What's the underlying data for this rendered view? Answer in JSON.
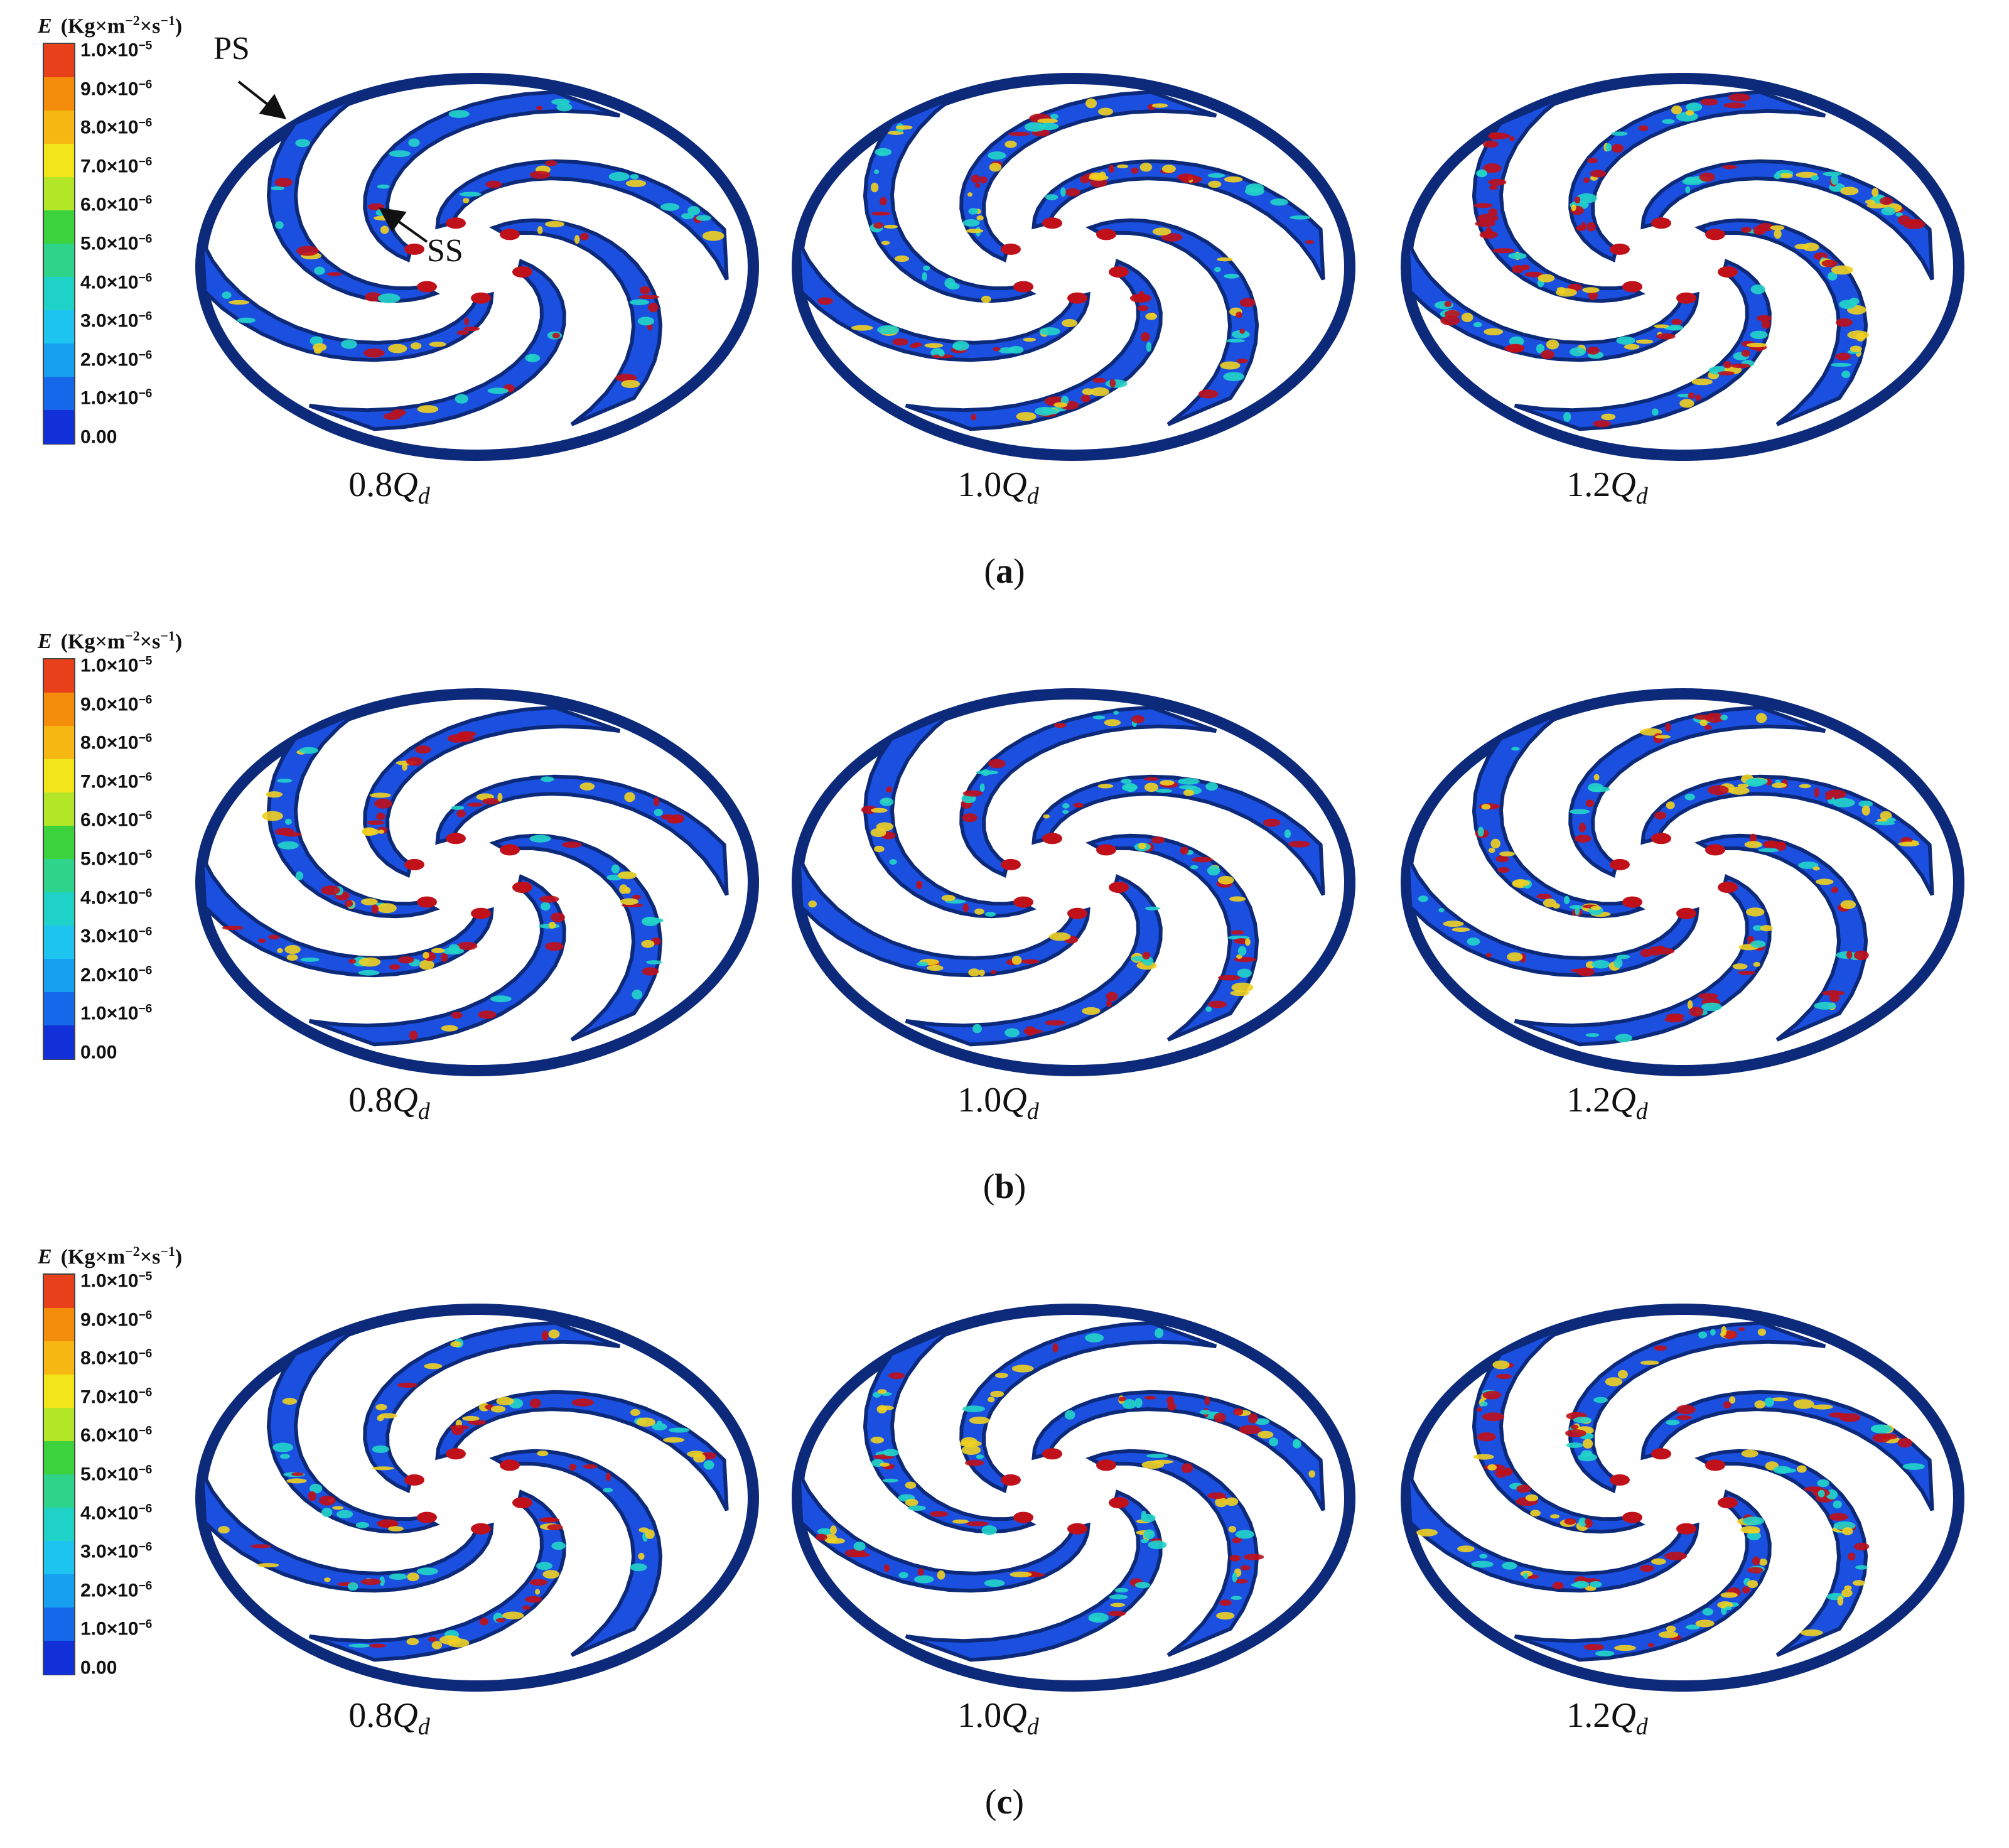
{
  "colorbar": {
    "title_symbol": "E",
    "title_unit_prefix": "(Kg×m",
    "title_unit_exp1": "−2",
    "title_unit_mid": "×s",
    "title_unit_exp2": "−1",
    "title_unit_suffix": ")",
    "ticks": [
      {
        "mant": "1.0×10",
        "exp": "−5"
      },
      {
        "mant": "9.0×10",
        "exp": "−6"
      },
      {
        "mant": "8.0×10",
        "exp": "−6"
      },
      {
        "mant": "7.0×10",
        "exp": "−6"
      },
      {
        "mant": "6.0×10",
        "exp": "−6"
      },
      {
        "mant": "5.0×10",
        "exp": "−6"
      },
      {
        "mant": "4.0×10",
        "exp": "−6"
      },
      {
        "mant": "3.0×10",
        "exp": "−6"
      },
      {
        "mant": "2.0×10",
        "exp": "−6"
      },
      {
        "mant": "1.0×10",
        "exp": "−6"
      },
      {
        "mant": "0.00",
        "exp": ""
      }
    ],
    "colors": [
      "#e8401a",
      "#f48c0c",
      "#f7b712",
      "#f2e61a",
      "#b3e626",
      "#3cd23c",
      "#2ed48a",
      "#1fd2c8",
      "#1cc4ef",
      "#18a0f0",
      "#1668ea",
      "#1230d8"
    ]
  },
  "annotations": {
    "ps": "PS",
    "ss": "SS"
  },
  "panels": [
    {
      "label": "a",
      "conditions": [
        {
          "coef": "0.8",
          "sym": "Q",
          "sub": "d"
        },
        {
          "coef": "1.0",
          "sym": "Q",
          "sub": "d"
        },
        {
          "coef": "1.2",
          "sym": "Q",
          "sub": "d"
        }
      ]
    },
    {
      "label": "b",
      "conditions": [
        {
          "coef": "0.8",
          "sym": "Q",
          "sub": "d"
        },
        {
          "coef": "1.0",
          "sym": "Q",
          "sub": "d"
        },
        {
          "coef": "1.2",
          "sym": "Q",
          "sub": "d"
        }
      ]
    },
    {
      "label": "c",
      "conditions": [
        {
          "coef": "0.8",
          "sym": "Q",
          "sub": "d"
        },
        {
          "coef": "1.0",
          "sym": "Q",
          "sub": "d"
        },
        {
          "coef": "1.2",
          "sym": "Q",
          "sub": "d"
        }
      ]
    }
  ],
  "surface_colors": {
    "blade": "#1a4fe0",
    "shroud": "#0d2a7a",
    "erosion_high": "#c0101a",
    "erosion_mid": "#f0d020",
    "erosion_low": "#22d4c8"
  }
}
